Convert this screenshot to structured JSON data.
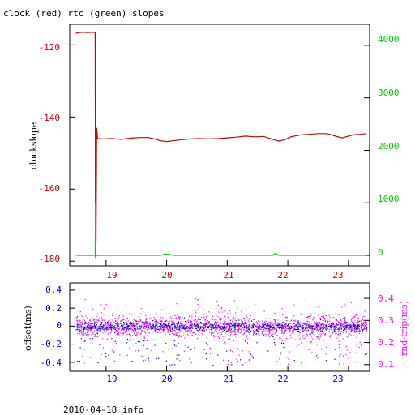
{
  "chart_data": [
    {
      "type": "line",
      "title": "clock (red) rtc (green) slopes",
      "ylabel": "clockslope",
      "x_ticks": [
        "19",
        "20",
        "21",
        "22",
        "23"
      ],
      "xlim": [
        18.4,
        23.35
      ],
      "y_left": {
        "ticks": [
          "-120",
          "-140",
          "-160",
          "-180"
        ],
        "ylim": [
          -181.3,
          -114.3
        ],
        "color": "#cc0000"
      },
      "y_right": {
        "ticks": [
          "0",
          "1000",
          "2000",
          "3000",
          "4000"
        ],
        "ylim": [
          -200,
          4400
        ],
        "color": "#00cc00"
      },
      "series": [
        {
          "color": "#cc0000",
          "points": [
            [
              18.5,
              -116.8
            ],
            [
              18.55,
              -116.6
            ],
            [
              18.62,
              -116.5
            ],
            [
              18.7,
              -116.6
            ],
            [
              18.78,
              -116.5
            ],
            [
              18.82,
              -116.6
            ],
            [
              18.825,
              -179.0
            ],
            [
              18.83,
              -150.0
            ],
            [
              18.835,
              -175.0
            ],
            [
              18.845,
              -143.0
            ],
            [
              18.86,
              -146.0
            ],
            [
              18.95,
              -146.1
            ],
            [
              19.1,
              -146.0
            ],
            [
              19.25,
              -146.2
            ],
            [
              19.4,
              -145.9
            ],
            [
              19.55,
              -145.7
            ],
            [
              19.7,
              -145.7
            ],
            [
              19.8,
              -146.1
            ],
            [
              19.9,
              -146.6
            ],
            [
              20.0,
              -146.8
            ],
            [
              20.1,
              -146.6
            ],
            [
              20.25,
              -146.3
            ],
            [
              20.4,
              -146.1
            ],
            [
              20.55,
              -146.0
            ],
            [
              20.7,
              -146.1
            ],
            [
              20.85,
              -146.0
            ],
            [
              21.0,
              -145.8
            ],
            [
              21.15,
              -145.6
            ],
            [
              21.3,
              -145.3
            ],
            [
              21.45,
              -145.5
            ],
            [
              21.6,
              -145.4
            ],
            [
              21.75,
              -146.2
            ],
            [
              21.85,
              -146.7
            ],
            [
              21.95,
              -146.3
            ],
            [
              22.05,
              -145.5
            ],
            [
              22.2,
              -145.0
            ],
            [
              22.35,
              -144.8
            ],
            [
              22.5,
              -144.6
            ],
            [
              22.65,
              -144.6
            ],
            [
              22.8,
              -145.4
            ],
            [
              22.9,
              -145.8
            ],
            [
              23.0,
              -145.3
            ],
            [
              23.1,
              -144.9
            ],
            [
              23.2,
              -144.8
            ],
            [
              23.3,
              -144.6
            ]
          ]
        },
        {
          "color": "#00cc00",
          "points": [
            [
              18.5,
              0
            ],
            [
              18.8,
              0
            ],
            [
              18.82,
              0
            ],
            [
              18.825,
              1000
            ],
            [
              18.83,
              -30
            ],
            [
              18.85,
              0
            ],
            [
              19.9,
              0
            ],
            [
              19.95,
              20
            ],
            [
              20.05,
              20
            ],
            [
              20.1,
              0
            ],
            [
              21.75,
              0
            ],
            [
              21.8,
              40
            ],
            [
              21.85,
              0
            ],
            [
              23.3,
              0
            ]
          ]
        }
      ]
    },
    {
      "type": "scatter",
      "x_ticks": [
        "19",
        "20",
        "21",
        "22",
        "23"
      ],
      "xlim": [
        18.4,
        23.35
      ],
      "y_left": {
        "label": "offset(ms)",
        "ticks": [
          "0.4",
          "0.2",
          "0",
          "-0.2",
          "-0.4"
        ],
        "ylim": [
          -0.5,
          0.48
        ],
        "color": "#0000cc"
      },
      "y_right": {
        "label": "rnd-trip(ms)",
        "ticks": [
          "0.4",
          "0.3",
          "0.2",
          "0.1"
        ],
        "ylim": [
          0.07,
          0.47
        ],
        "color": "#ff00ff"
      },
      "series": [
        {
          "color": "#0000cc",
          "axis": "left",
          "x_range": [
            18.5,
            23.3
          ],
          "center": 0.0,
          "band_spread": 0.05,
          "outlier_range": [
            -0.43,
            0.12
          ]
        },
        {
          "color": "#ff00ff",
          "axis": "right",
          "x_range": [
            18.5,
            23.3
          ],
          "center": 0.275,
          "band_spread": 0.05,
          "outlier_range": [
            0.1,
            0.4
          ]
        }
      ]
    }
  ],
  "footer": {
    "text": "2010-04-18 info"
  },
  "colors": {
    "clock": "#cc0000",
    "rtc": "#00cc00",
    "offset": "#0000cc",
    "rnd_trip": "#ff00ff",
    "frame": "#000000"
  }
}
